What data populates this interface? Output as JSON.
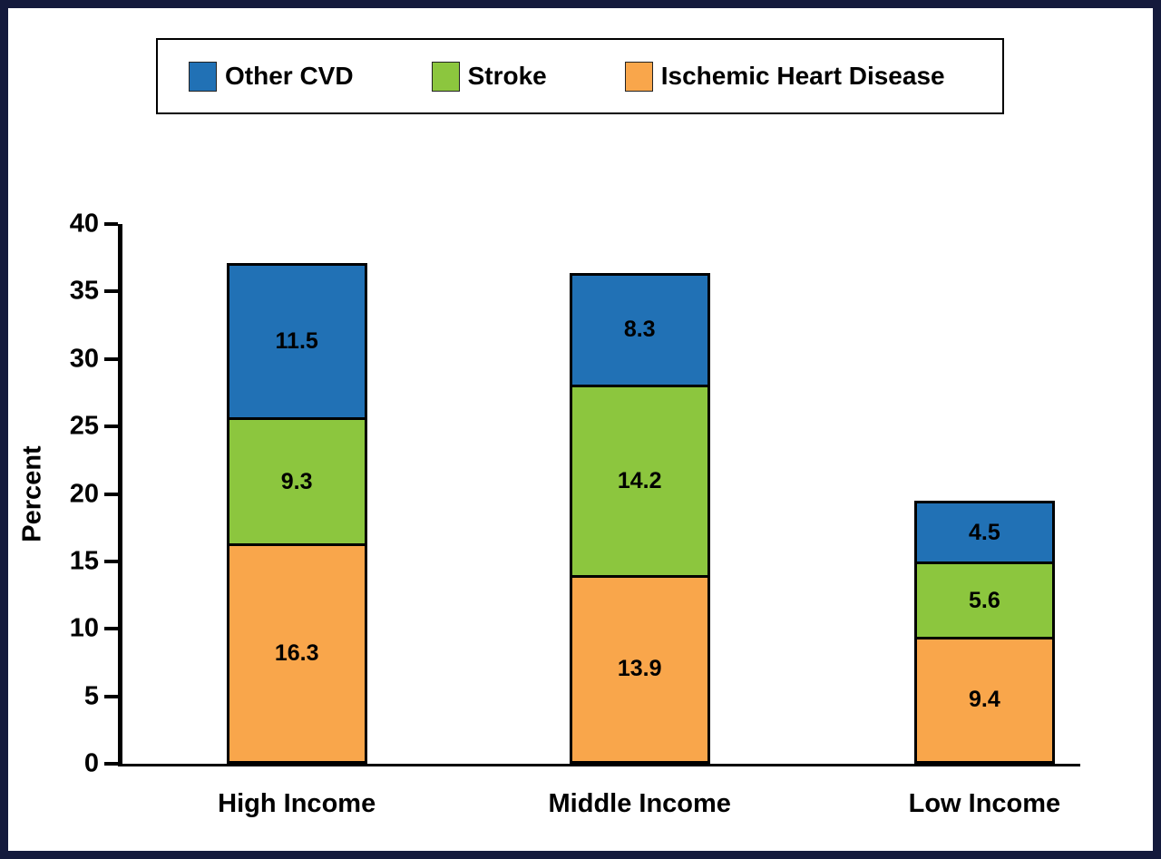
{
  "frame": {
    "border_color": "#141a3c",
    "background": "#ffffff"
  },
  "legend": {
    "position": "top",
    "items": [
      {
        "label": "Other CVD",
        "color": "#2171b5"
      },
      {
        "label": "Stroke",
        "color": "#8cc63e"
      },
      {
        "label": "Ischemic Heart Disease",
        "color": "#f9a64b"
      }
    ]
  },
  "chart_data": {
    "type": "bar",
    "stacked": true,
    "title": "",
    "categories": [
      "High Income",
      "Middle Income",
      "Low Income"
    ],
    "series": [
      {
        "name": "Ischemic Heart Disease",
        "color": "#f9a64b",
        "values": [
          16.3,
          13.9,
          9.4
        ]
      },
      {
        "name": "Stroke",
        "color": "#8cc63e",
        "values": [
          9.3,
          14.2,
          5.6
        ]
      },
      {
        "name": "Other CVD",
        "color": "#2171b5",
        "values": [
          11.5,
          8.3,
          4.5
        ]
      }
    ],
    "totals": [
      37.1,
      36.4,
      19.5
    ],
    "xlabel": "",
    "ylabel": "Percent",
    "ylim": [
      0,
      40
    ],
    "yticks": [
      0,
      5,
      10,
      15,
      20,
      25,
      30,
      35,
      40
    ],
    "grid": false,
    "legend_position": "top"
  }
}
